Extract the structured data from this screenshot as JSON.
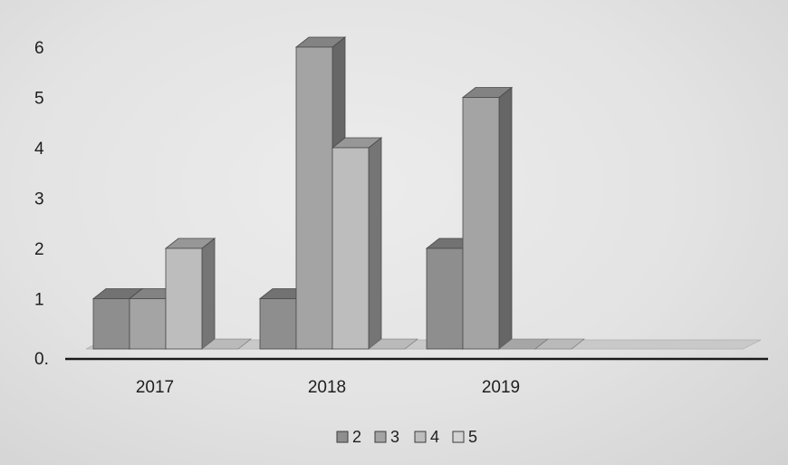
{
  "chart_data": {
    "type": "bar",
    "style": "3d-clustered-column",
    "categories": [
      "2017",
      "2018",
      "2019"
    ],
    "series": [
      {
        "name": "2",
        "values": [
          1,
          1,
          2
        ],
        "color": "#8e8e8e"
      },
      {
        "name": "3",
        "values": [
          1,
          6,
          5
        ],
        "color": "#a4a4a4"
      },
      {
        "name": "4",
        "values": [
          2,
          4,
          0
        ],
        "color": "#bdbdbd"
      },
      {
        "name": "5",
        "values": [
          0,
          0,
          0
        ],
        "color": "#d3d3d3"
      }
    ],
    "ylim": [
      0,
      6
    ],
    "yticks": [
      "0.",
      "1",
      "2",
      "3",
      "4",
      "5",
      "6"
    ],
    "grid": false,
    "legend_position": "bottom"
  }
}
